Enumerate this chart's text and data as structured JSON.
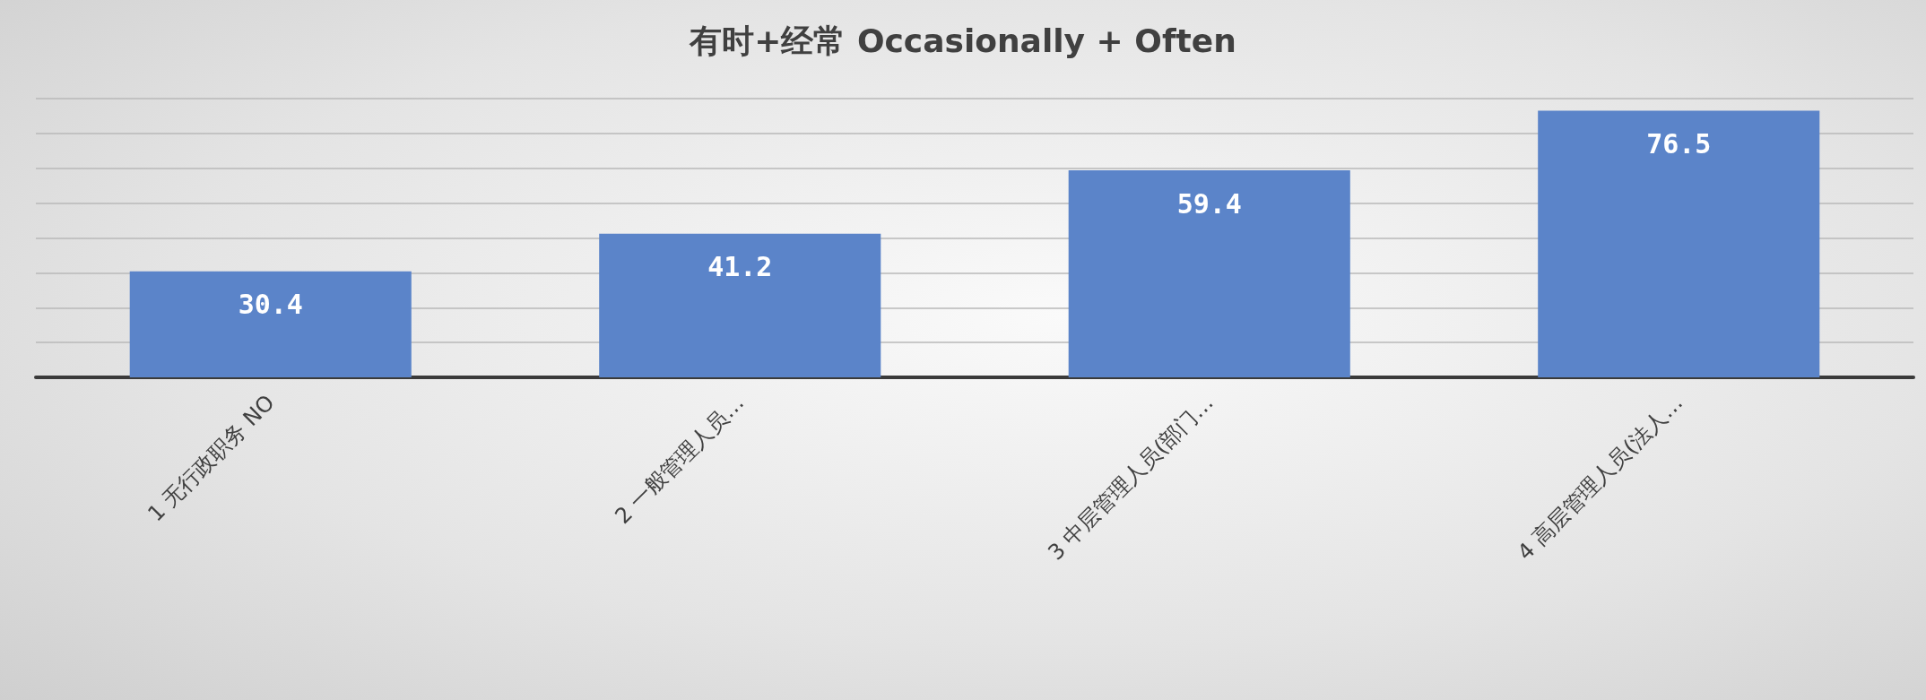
{
  "chart_data": {
    "type": "bar",
    "title": "有时+经常 Occasionally + Often",
    "categories": [
      "1 无行政职务 NO",
      "2 一般管理人员…",
      "3 中层管理人员(部门…",
      "4 高层管理人员(法人…"
    ],
    "values": [
      30.4,
      41.2,
      59.4,
      76.5
    ],
    "color": "#5b84c9",
    "ylim": [
      0,
      80
    ],
    "yticks": [
      {
        "value": 0,
        "label": null
      },
      {
        "value": 10,
        "label": null
      },
      {
        "value": 20,
        "label": null
      },
      {
        "value": 30,
        "label": null
      },
      {
        "value": 40,
        "label": null
      },
      {
        "value": 50,
        "label": null
      },
      {
        "value": 60,
        "label": null
      },
      {
        "value": 70,
        "label": null
      },
      {
        "value": 80,
        "label": null
      }
    ],
    "grid": "y",
    "tick_labels": "x",
    "data_labels": true
  }
}
